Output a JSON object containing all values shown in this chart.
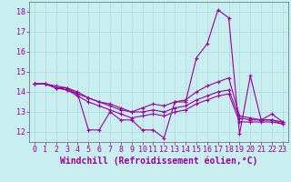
{
  "xlabel": "Windchill (Refroidissement éolien,°C)",
  "bg_color": "#c8eef0",
  "line_color": "#990099",
  "grid_color": "#b0dde0",
  "xlim_min": -0.5,
  "xlim_max": 23.5,
  "ylim_min": 11.5,
  "ylim_max": 18.5,
  "yticks": [
    12,
    13,
    14,
    15,
    16,
    17,
    18
  ],
  "xticks": [
    0,
    1,
    2,
    3,
    4,
    5,
    6,
    7,
    8,
    9,
    10,
    11,
    12,
    13,
    14,
    15,
    16,
    17,
    18,
    19,
    20,
    21,
    22,
    23
  ],
  "series": [
    [
      14.4,
      14.4,
      14.2,
      14.2,
      13.9,
      12.1,
      12.1,
      13.0,
      12.6,
      12.6,
      12.1,
      12.1,
      11.7,
      13.5,
      13.5,
      15.7,
      16.4,
      18.1,
      17.7,
      11.9,
      14.8,
      12.6,
      12.9,
      12.5
    ],
    [
      14.4,
      14.4,
      14.3,
      14.2,
      14.0,
      13.7,
      13.5,
      13.3,
      13.1,
      13.0,
      13.2,
      13.4,
      13.3,
      13.5,
      13.6,
      14.0,
      14.3,
      14.5,
      14.7,
      12.8,
      12.7,
      12.6,
      12.6,
      12.5
    ],
    [
      14.4,
      14.4,
      14.2,
      14.1,
      13.9,
      13.7,
      13.5,
      13.4,
      13.2,
      13.0,
      13.0,
      13.1,
      13.0,
      13.2,
      13.3,
      13.6,
      13.8,
      14.0,
      14.1,
      12.7,
      12.6,
      12.6,
      12.6,
      12.4
    ],
    [
      14.4,
      14.4,
      14.2,
      14.1,
      13.8,
      13.5,
      13.3,
      13.1,
      12.9,
      12.7,
      12.8,
      12.9,
      12.8,
      13.0,
      13.1,
      13.4,
      13.6,
      13.8,
      13.9,
      12.5,
      12.5,
      12.5,
      12.5,
      12.4
    ]
  ],
  "marker": "+",
  "markersize": 3,
  "linewidth": 0.8,
  "xlabel_fontsize": 7,
  "tick_fontsize": 6,
  "ylabel_fontsize": 6
}
